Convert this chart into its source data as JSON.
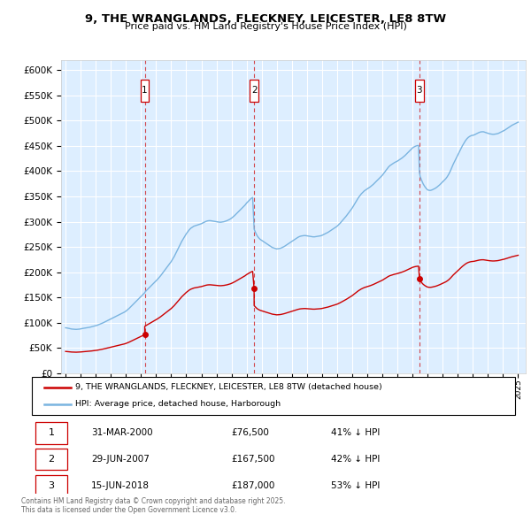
{
  "title": "9, THE WRANGLANDS, FLECKNEY, LEICESTER, LE8 8TW",
  "subtitle": "Price paid vs. HM Land Registry's House Price Index (HPI)",
  "hpi_line_color": "#7ab4e0",
  "price_line_color": "#cc0000",
  "sale_dates_decimal": [
    2000.247,
    2007.495,
    2018.456
  ],
  "sale_prices": [
    76500,
    167500,
    187000
  ],
  "sale_labels": [
    "1",
    "2",
    "3"
  ],
  "sale_date_str": [
    "31-MAR-2000",
    "29-JUN-2007",
    "15-JUN-2018"
  ],
  "sale_price_str": [
    "£76,500",
    "£167,500",
    "£187,000"
  ],
  "sale_pct_str": [
    "41% ↓ HPI",
    "42% ↓ HPI",
    "53% ↓ HPI"
  ],
  "legend_line1": "9, THE WRANGLANDS, FLECKNEY, LEICESTER, LE8 8TW (detached house)",
  "legend_line2": "HPI: Average price, detached house, Harborough",
  "footnote1": "Contains HM Land Registry data © Crown copyright and database right 2025.",
  "footnote2": "This data is licensed under the Open Government Licence v3.0.",
  "ylim": [
    0,
    620000
  ],
  "yticks": [
    0,
    50000,
    100000,
    150000,
    200000,
    250000,
    300000,
    350000,
    400000,
    450000,
    500000,
    550000,
    600000
  ],
  "ytick_labels": [
    "£0",
    "£50K",
    "£100K",
    "£150K",
    "£200K",
    "£250K",
    "£300K",
    "£350K",
    "£400K",
    "£450K",
    "£500K",
    "£550K",
    "£600K"
  ],
  "xlim_start": 1994.7,
  "xlim_end": 2025.5,
  "background_color": "#ddeeff",
  "hpi_data": [
    [
      1995.0,
      90000
    ],
    [
      1995.1,
      89500
    ],
    [
      1995.2,
      88800
    ],
    [
      1995.3,
      88000
    ],
    [
      1995.4,
      87500
    ],
    [
      1995.5,
      87200
    ],
    [
      1995.6,
      87000
    ],
    [
      1995.7,
      86800
    ],
    [
      1995.8,
      87000
    ],
    [
      1995.9,
      87300
    ],
    [
      1996.0,
      87800
    ],
    [
      1996.1,
      88500
    ],
    [
      1996.2,
      89000
    ],
    [
      1996.3,
      89500
    ],
    [
      1996.4,
      90000
    ],
    [
      1996.5,
      90500
    ],
    [
      1996.6,
      91000
    ],
    [
      1996.7,
      91800
    ],
    [
      1996.8,
      92500
    ],
    [
      1996.9,
      93200
    ],
    [
      1997.0,
      94000
    ],
    [
      1997.1,
      95000
    ],
    [
      1997.2,
      96200
    ],
    [
      1997.3,
      97500
    ],
    [
      1997.4,
      98800
    ],
    [
      1997.5,
      100000
    ],
    [
      1997.6,
      101500
    ],
    [
      1997.7,
      103000
    ],
    [
      1997.8,
      104500
    ],
    [
      1997.9,
      106000
    ],
    [
      1998.0,
      107500
    ],
    [
      1998.1,
      109000
    ],
    [
      1998.2,
      110500
    ],
    [
      1998.3,
      112000
    ],
    [
      1998.4,
      113500
    ],
    [
      1998.5,
      115000
    ],
    [
      1998.6,
      116500
    ],
    [
      1998.7,
      118000
    ],
    [
      1998.8,
      119500
    ],
    [
      1998.9,
      121000
    ],
    [
      1999.0,
      123000
    ],
    [
      1999.1,
      125500
    ],
    [
      1999.2,
      128000
    ],
    [
      1999.3,
      131000
    ],
    [
      1999.4,
      134000
    ],
    [
      1999.5,
      137000
    ],
    [
      1999.6,
      140000
    ],
    [
      1999.7,
      143000
    ],
    [
      1999.8,
      146000
    ],
    [
      1999.9,
      149000
    ],
    [
      2000.0,
      152000
    ],
    [
      2000.1,
      155000
    ],
    [
      2000.2,
      158000
    ],
    [
      2000.247,
      159500
    ],
    [
      2000.3,
      162000
    ],
    [
      2000.4,
      165000
    ],
    [
      2000.5,
      168000
    ],
    [
      2000.6,
      171000
    ],
    [
      2000.7,
      174000
    ],
    [
      2000.8,
      177000
    ],
    [
      2000.9,
      180000
    ],
    [
      2001.0,
      183000
    ],
    [
      2001.1,
      186000
    ],
    [
      2001.2,
      189500
    ],
    [
      2001.3,
      193000
    ],
    [
      2001.4,
      197000
    ],
    [
      2001.5,
      201000
    ],
    [
      2001.6,
      205000
    ],
    [
      2001.7,
      209000
    ],
    [
      2001.8,
      213000
    ],
    [
      2001.9,
      217000
    ],
    [
      2002.0,
      221000
    ],
    [
      2002.1,
      226000
    ],
    [
      2002.2,
      231000
    ],
    [
      2002.3,
      237000
    ],
    [
      2002.4,
      243000
    ],
    [
      2002.5,
      249000
    ],
    [
      2002.6,
      255000
    ],
    [
      2002.7,
      261000
    ],
    [
      2002.8,
      266000
    ],
    [
      2002.9,
      271000
    ],
    [
      2003.0,
      276000
    ],
    [
      2003.1,
      280000
    ],
    [
      2003.2,
      284000
    ],
    [
      2003.3,
      287000
    ],
    [
      2003.4,
      289000
    ],
    [
      2003.5,
      291000
    ],
    [
      2003.6,
      292000
    ],
    [
      2003.7,
      293000
    ],
    [
      2003.8,
      294000
    ],
    [
      2003.9,
      295000
    ],
    [
      2004.0,
      296000
    ],
    [
      2004.1,
      297500
    ],
    [
      2004.2,
      299000
    ],
    [
      2004.3,
      300500
    ],
    [
      2004.4,
      301500
    ],
    [
      2004.5,
      302000
    ],
    [
      2004.6,
      302000
    ],
    [
      2004.7,
      301500
    ],
    [
      2004.8,
      301000
    ],
    [
      2004.9,
      300500
    ],
    [
      2005.0,
      300000
    ],
    [
      2005.1,
      299500
    ],
    [
      2005.2,
      299000
    ],
    [
      2005.3,
      299000
    ],
    [
      2005.4,
      299500
    ],
    [
      2005.5,
      300000
    ],
    [
      2005.6,
      301000
    ],
    [
      2005.7,
      302000
    ],
    [
      2005.8,
      303500
    ],
    [
      2005.9,
      305000
    ],
    [
      2006.0,
      307000
    ],
    [
      2006.1,
      309500
    ],
    [
      2006.2,
      312000
    ],
    [
      2006.3,
      315000
    ],
    [
      2006.4,
      318000
    ],
    [
      2006.5,
      321000
    ],
    [
      2006.6,
      324000
    ],
    [
      2006.7,
      327000
    ],
    [
      2006.8,
      330000
    ],
    [
      2006.9,
      333000
    ],
    [
      2007.0,
      337000
    ],
    [
      2007.1,
      340000
    ],
    [
      2007.2,
      343000
    ],
    [
      2007.3,
      346000
    ],
    [
      2007.4,
      348000
    ],
    [
      2007.495,
      289000
    ],
    [
      2007.5,
      285000
    ],
    [
      2007.6,
      278000
    ],
    [
      2007.7,
      272000
    ],
    [
      2007.8,
      268000
    ],
    [
      2007.9,
      265000
    ],
    [
      2008.0,
      263000
    ],
    [
      2008.1,
      261000
    ],
    [
      2008.2,
      259000
    ],
    [
      2008.3,
      257000
    ],
    [
      2008.4,
      255000
    ],
    [
      2008.5,
      253000
    ],
    [
      2008.6,
      251000
    ],
    [
      2008.7,
      249000
    ],
    [
      2008.8,
      248000
    ],
    [
      2008.9,
      247000
    ],
    [
      2009.0,
      246000
    ],
    [
      2009.1,
      246500
    ],
    [
      2009.2,
      247000
    ],
    [
      2009.3,
      248000
    ],
    [
      2009.4,
      249500
    ],
    [
      2009.5,
      251000
    ],
    [
      2009.6,
      253000
    ],
    [
      2009.7,
      255000
    ],
    [
      2009.8,
      257000
    ],
    [
      2009.9,
      259000
    ],
    [
      2010.0,
      261000
    ],
    [
      2010.1,
      263000
    ],
    [
      2010.2,
      265000
    ],
    [
      2010.3,
      267000
    ],
    [
      2010.4,
      269000
    ],
    [
      2010.5,
      270500
    ],
    [
      2010.6,
      271500
    ],
    [
      2010.7,
      272000
    ],
    [
      2010.8,
      272500
    ],
    [
      2010.9,
      272500
    ],
    [
      2011.0,
      272000
    ],
    [
      2011.1,
      271500
    ],
    [
      2011.2,
      271000
    ],
    [
      2011.3,
      270500
    ],
    [
      2011.4,
      270000
    ],
    [
      2011.5,
      270000
    ],
    [
      2011.6,
      270500
    ],
    [
      2011.7,
      271000
    ],
    [
      2011.8,
      271500
    ],
    [
      2011.9,
      272000
    ],
    [
      2012.0,
      273000
    ],
    [
      2012.1,
      274500
    ],
    [
      2012.2,
      276000
    ],
    [
      2012.3,
      277500
    ],
    [
      2012.4,
      279000
    ],
    [
      2012.5,
      281000
    ],
    [
      2012.6,
      283000
    ],
    [
      2012.7,
      285000
    ],
    [
      2012.8,
      287000
    ],
    [
      2012.9,
      289000
    ],
    [
      2013.0,
      291000
    ],
    [
      2013.1,
      294000
    ],
    [
      2013.2,
      297000
    ],
    [
      2013.3,
      300500
    ],
    [
      2013.4,
      304000
    ],
    [
      2013.5,
      307500
    ],
    [
      2013.6,
      311000
    ],
    [
      2013.7,
      315000
    ],
    [
      2013.8,
      319000
    ],
    [
      2013.9,
      323000
    ],
    [
      2014.0,
      327000
    ],
    [
      2014.1,
      332000
    ],
    [
      2014.2,
      337000
    ],
    [
      2014.3,
      342000
    ],
    [
      2014.4,
      347000
    ],
    [
      2014.5,
      351000
    ],
    [
      2014.6,
      355000
    ],
    [
      2014.7,
      358000
    ],
    [
      2014.8,
      361000
    ],
    [
      2014.9,
      363000
    ],
    [
      2015.0,
      365000
    ],
    [
      2015.1,
      367000
    ],
    [
      2015.2,
      369000
    ],
    [
      2015.3,
      371500
    ],
    [
      2015.4,
      374000
    ],
    [
      2015.5,
      377000
    ],
    [
      2015.6,
      380000
    ],
    [
      2015.7,
      383000
    ],
    [
      2015.8,
      386000
    ],
    [
      2015.9,
      389000
    ],
    [
      2016.0,
      392000
    ],
    [
      2016.1,
      396000
    ],
    [
      2016.2,
      400000
    ],
    [
      2016.3,
      404000
    ],
    [
      2016.4,
      408000
    ],
    [
      2016.5,
      411000
    ],
    [
      2016.6,
      413000
    ],
    [
      2016.7,
      415000
    ],
    [
      2016.8,
      417000
    ],
    [
      2016.9,
      418500
    ],
    [
      2017.0,
      420000
    ],
    [
      2017.1,
      422000
    ],
    [
      2017.2,
      424000
    ],
    [
      2017.3,
      426000
    ],
    [
      2017.4,
      428500
    ],
    [
      2017.5,
      431000
    ],
    [
      2017.6,
      434000
    ],
    [
      2017.7,
      437000
    ],
    [
      2017.8,
      440000
    ],
    [
      2017.9,
      443000
    ],
    [
      2018.0,
      446000
    ],
    [
      2018.1,
      448000
    ],
    [
      2018.2,
      449500
    ],
    [
      2018.3,
      450500
    ],
    [
      2018.4,
      451000
    ],
    [
      2018.456,
      398000
    ],
    [
      2018.5,
      390000
    ],
    [
      2018.6,
      382000
    ],
    [
      2018.7,
      375000
    ],
    [
      2018.8,
      370000
    ],
    [
      2018.9,
      366000
    ],
    [
      2019.0,
      363000
    ],
    [
      2019.1,
      362000
    ],
    [
      2019.2,
      362000
    ],
    [
      2019.3,
      363000
    ],
    [
      2019.4,
      364500
    ],
    [
      2019.5,
      366000
    ],
    [
      2019.6,
      368000
    ],
    [
      2019.7,
      370500
    ],
    [
      2019.8,
      373000
    ],
    [
      2019.9,
      376000
    ],
    [
      2020.0,
      379000
    ],
    [
      2020.1,
      382000
    ],
    [
      2020.2,
      385000
    ],
    [
      2020.3,
      389000
    ],
    [
      2020.4,
      394000
    ],
    [
      2020.5,
      400000
    ],
    [
      2020.6,
      407000
    ],
    [
      2020.7,
      414000
    ],
    [
      2020.8,
      420000
    ],
    [
      2020.9,
      426000
    ],
    [
      2021.0,
      432000
    ],
    [
      2021.1,
      438000
    ],
    [
      2021.2,
      444000
    ],
    [
      2021.3,
      450000
    ],
    [
      2021.4,
      455000
    ],
    [
      2021.5,
      460000
    ],
    [
      2021.6,
      464000
    ],
    [
      2021.7,
      467000
    ],
    [
      2021.8,
      469000
    ],
    [
      2021.9,
      470500
    ],
    [
      2022.0,
      471000
    ],
    [
      2022.1,
      472000
    ],
    [
      2022.2,
      473500
    ],
    [
      2022.3,
      475000
    ],
    [
      2022.4,
      476500
    ],
    [
      2022.5,
      477500
    ],
    [
      2022.6,
      478000
    ],
    [
      2022.7,
      478000
    ],
    [
      2022.8,
      477000
    ],
    [
      2022.9,
      476000
    ],
    [
      2023.0,
      475000
    ],
    [
      2023.1,
      474000
    ],
    [
      2023.2,
      473500
    ],
    [
      2023.3,
      473000
    ],
    [
      2023.4,
      473000
    ],
    [
      2023.5,
      473500
    ],
    [
      2023.6,
      474000
    ],
    [
      2023.7,
      475000
    ],
    [
      2023.8,
      476500
    ],
    [
      2023.9,
      478000
    ],
    [
      2024.0,
      479500
    ],
    [
      2024.1,
      481000
    ],
    [
      2024.2,
      483000
    ],
    [
      2024.3,
      485000
    ],
    [
      2024.4,
      487000
    ],
    [
      2024.5,
      489000
    ],
    [
      2024.6,
      491000
    ],
    [
      2024.7,
      492500
    ],
    [
      2024.8,
      494000
    ],
    [
      2024.9,
      495500
    ],
    [
      2025.0,
      497000
    ]
  ]
}
